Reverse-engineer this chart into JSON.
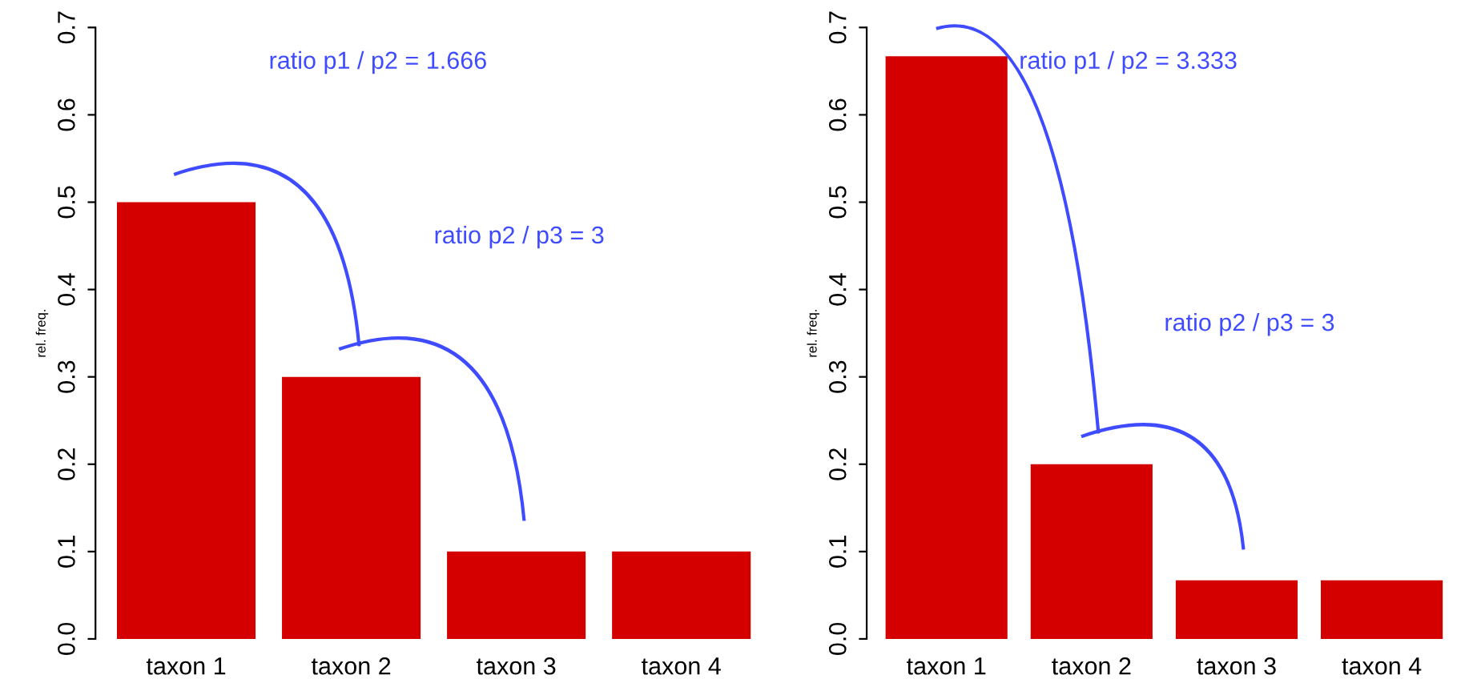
{
  "chart_data": [
    {
      "type": "bar",
      "ylabel": "rel. freq.",
      "categories": [
        "taxon 1",
        "taxon 2",
        "taxon 3",
        "taxon 4"
      ],
      "values": [
        0.5,
        0.3,
        0.1,
        0.1
      ],
      "color": "#d40000",
      "ylim": [
        0,
        0.7
      ],
      "yticks": [
        {
          "value": 0,
          "label": "0.0"
        },
        0.1,
        0.2,
        0.3,
        0.4,
        0.5,
        0.6,
        0.7
      ],
      "grid": false,
      "legend": false,
      "annotations": [
        "ratio p1 / p2 = 1.666",
        "ratio p2 / p3 = 3"
      ]
    },
    {
      "type": "bar",
      "ylabel": "rel. freq.",
      "categories": [
        "taxon 1",
        "taxon 2",
        "taxon 3",
        "taxon 4"
      ],
      "values": [
        0.667,
        0.2,
        0.067,
        0.067
      ],
      "color": "#d40000",
      "ylim": [
        0,
        0.7
      ],
      "yticks": [
        {
          "value": 0,
          "label": "0.0"
        },
        0.1,
        0.2,
        0.3,
        0.4,
        0.5,
        0.6,
        0.7
      ],
      "grid": false,
      "legend": false,
      "annotations": [
        "ratio p1 / p2 = 3.333",
        "ratio p2 / p3 = 3"
      ]
    }
  ]
}
